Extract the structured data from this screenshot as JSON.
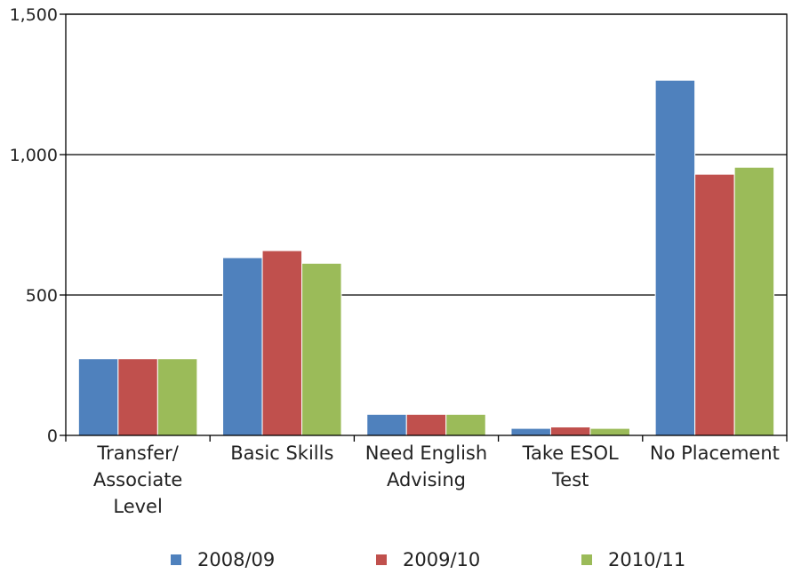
{
  "chart_data": {
    "type": "bar",
    "title": "",
    "xlabel": "",
    "ylabel": "",
    "ylim": [
      0,
      1500
    ],
    "yticks": [
      0,
      500,
      1000,
      1500
    ],
    "ytick_labels": [
      "0",
      "500",
      "1,000",
      "1,500"
    ],
    "grid": true,
    "legend_position": "bottom",
    "categories": [
      [
        "Transfer/",
        "Associate",
        "Level"
      ],
      [
        "Basic Skills"
      ],
      [
        "Need English",
        "Advising"
      ],
      [
        "Take ESOL",
        "Test"
      ],
      [
        "No Placement"
      ]
    ],
    "series": [
      {
        "name": "2008/09",
        "color": "#4f81bd",
        "values": [
          273,
          633,
          75,
          25,
          1265
        ]
      },
      {
        "name": "2009/10",
        "color": "#c0504d",
        "values": [
          273,
          658,
          75,
          30,
          930
        ]
      },
      {
        "name": "2010/11",
        "color": "#9bbb59",
        "values": [
          273,
          613,
          75,
          25,
          955
        ]
      }
    ]
  }
}
